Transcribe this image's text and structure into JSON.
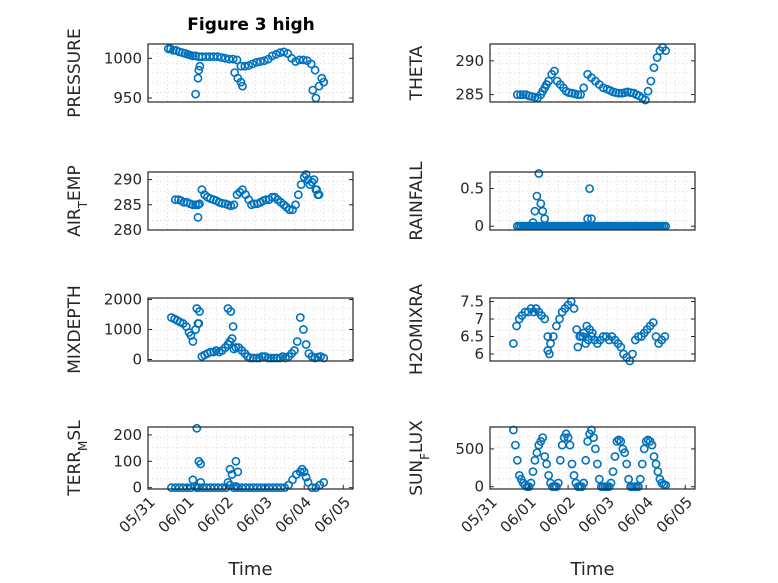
{
  "figure_title": "Figure 3 high",
  "chart_data": [
    {
      "type": "scatter",
      "ylabel": "PRESSURE",
      "xlabel": "",
      "title": "Figure 3 high",
      "xlim": [
        0,
        5.25
      ],
      "ylim": [
        945,
        1018
      ],
      "yticks": [
        950,
        1000
      ],
      "xticks": [],
      "xtick_labels": [],
      "grid": true,
      "color": "#0072BD",
      "x": [
        0.52,
        0.58,
        0.65,
        0.72,
        0.8,
        0.88,
        0.95,
        1.02,
        1.08,
        1.15,
        1.22,
        1.3,
        1.38,
        1.48,
        1.58,
        1.68,
        1.78,
        1.88,
        1.98,
        2.08,
        2.18,
        2.28,
        2.38,
        2.48,
        2.58,
        2.68,
        2.78,
        2.88,
        2.98,
        3.08,
        3.18,
        3.28,
        3.38,
        3.48,
        3.58,
        3.68,
        3.78,
        3.88,
        3.98,
        4.08,
        4.18,
        4.28,
        1.22,
        1.28,
        1.3,
        1.33,
        2.22,
        2.3,
        2.38,
        2.42,
        4.22,
        4.3,
        4.38,
        4.45,
        4.5
      ],
      "y": [
        1012,
        1012,
        1010,
        1010,
        1008,
        1007,
        1006,
        1005,
        1004,
        1003,
        1003,
        1002,
        1002,
        1002,
        1002,
        1002,
        1002,
        1001,
        1000,
        999,
        999,
        998,
        990,
        990,
        991,
        993,
        995,
        996,
        997,
        999,
        1003,
        1005,
        1007,
        1008,
        1006,
        1000,
        996,
        998,
        998,
        997,
        993,
        985,
        955,
        975,
        985,
        990,
        982,
        975,
        970,
        965,
        960,
        950,
        965,
        975,
        970
      ]
    },
    {
      "type": "scatter",
      "ylabel": "THETA",
      "xlabel": "",
      "title": "",
      "xlim": [
        0,
        5.25
      ],
      "ylim": [
        283.9,
        292.5
      ],
      "yticks": [
        285,
        290
      ],
      "xticks": [],
      "xtick_labels": [],
      "grid": true,
      "color": "#0072BD",
      "x": [
        0.7,
        0.78,
        0.85,
        0.92,
        1.0,
        1.08,
        1.15,
        1.22,
        1.3,
        1.35,
        1.4,
        1.45,
        1.5,
        1.58,
        1.65,
        1.72,
        1.8,
        1.88,
        1.95,
        2.02,
        2.1,
        2.18,
        2.25,
        2.32,
        2.4,
        2.5,
        2.6,
        2.7,
        2.8,
        2.9,
        3.0,
        3.08,
        3.15,
        3.22,
        3.3,
        3.38,
        3.45,
        3.52,
        3.6,
        3.68,
        3.75,
        3.82,
        3.9,
        3.98,
        4.05,
        4.12,
        4.2,
        4.28,
        4.35,
        4.42,
        4.5
      ],
      "y": [
        285,
        285,
        285,
        285,
        284.8,
        284.7,
        284.6,
        284.5,
        285,
        285.5,
        286,
        286.5,
        287,
        288,
        288.5,
        287,
        286.5,
        286,
        285.5,
        285.3,
        285.2,
        285.1,
        285,
        285,
        286,
        288,
        287.5,
        287,
        286.5,
        286,
        285.8,
        285.6,
        285.4,
        285.3,
        285.2,
        285.2,
        285.3,
        285.4,
        285.3,
        285.2,
        285,
        284.8,
        284.5,
        284.2,
        285.5,
        287,
        289,
        290.5,
        291.5,
        292,
        291.5
      ]
    },
    {
      "type": "scatter",
      "ylabel": "AIR_TEMP",
      "xlabel": "",
      "title": "",
      "xlim": [
        0,
        5.25
      ],
      "ylim": [
        280,
        291.5
      ],
      "yticks": [
        280,
        285,
        290
      ],
      "xticks": [],
      "xtick_labels": [],
      "grid": true,
      "color": "#0072BD",
      "x": [
        0.7,
        0.78,
        0.85,
        0.92,
        1.0,
        1.08,
        1.15,
        1.22,
        1.28,
        1.32,
        1.38,
        1.45,
        1.52,
        1.6,
        1.68,
        1.75,
        1.82,
        1.9,
        1.98,
        2.05,
        2.12,
        2.2,
        2.28,
        2.35,
        2.42,
        2.5,
        2.58,
        2.65,
        2.72,
        2.8,
        2.88,
        2.95,
        3.02,
        3.1,
        3.18,
        3.25,
        3.32,
        3.4,
        3.48,
        3.55,
        3.62,
        3.7,
        3.78,
        3.85,
        3.92,
        4.0,
        4.05,
        4.1,
        4.15,
        4.2,
        4.25,
        4.3,
        4.35,
        1.28,
        4.32,
        4.38
      ],
      "y": [
        286,
        286,
        285.8,
        285.5,
        285.5,
        285.2,
        285,
        285,
        285,
        285.2,
        288,
        287,
        286.5,
        286.2,
        286,
        285.8,
        285.5,
        285.3,
        285.2,
        285,
        284.8,
        285,
        287,
        287.5,
        288,
        287,
        286,
        285,
        285.2,
        285.2,
        285.5,
        285.8,
        286,
        286,
        286.5,
        286.5,
        286,
        285.5,
        285,
        284.5,
        284,
        284,
        285,
        287,
        289,
        290.5,
        291,
        290,
        289,
        289.5,
        290,
        288,
        287,
        282.5,
        288,
        287
      ]
    },
    {
      "type": "scatter",
      "ylabel": "RAINFALL",
      "xlabel": "",
      "title": "",
      "xlim": [
        0,
        5.25
      ],
      "ylim": [
        -0.05,
        0.72
      ],
      "yticks": [
        0,
        0.5
      ],
      "xticks": [],
      "xtick_labels": [],
      "grid": true,
      "color": "#0072BD",
      "x": [
        0.7,
        0.75,
        0.8,
        0.85,
        0.9,
        0.95,
        1.0,
        1.05,
        1.1,
        1.15,
        1.2,
        1.25,
        1.3,
        1.35,
        1.4,
        1.45,
        1.5,
        1.55,
        1.6,
        1.65,
        1.7,
        1.75,
        1.8,
        1.85,
        1.9,
        1.95,
        2.0,
        2.05,
        2.1,
        2.15,
        2.2,
        2.25,
        2.3,
        2.35,
        2.4,
        2.45,
        2.5,
        2.55,
        2.6,
        2.65,
        2.7,
        2.75,
        2.8,
        2.85,
        2.9,
        2.95,
        3.0,
        3.05,
        3.1,
        3.15,
        3.2,
        3.25,
        3.3,
        3.35,
        3.4,
        3.45,
        3.5,
        3.55,
        3.6,
        3.65,
        3.7,
        3.75,
        3.8,
        3.85,
        3.9,
        3.95,
        4.0,
        4.05,
        4.1,
        4.15,
        4.2,
        4.25,
        4.3,
        4.35,
        4.4,
        4.45,
        4.5,
        1.1,
        1.15,
        1.2,
        1.25,
        1.3,
        1.35,
        1.4,
        2.5,
        2.55,
        2.6
      ],
      "y": [
        0,
        0,
        0,
        0,
        0,
        0,
        0,
        0,
        0,
        0,
        0,
        0,
        0,
        0,
        0,
        0,
        0,
        0,
        0,
        0,
        0,
        0,
        0,
        0,
        0,
        0,
        0,
        0,
        0,
        0,
        0,
        0,
        0,
        0,
        0,
        0,
        0,
        0,
        0,
        0,
        0,
        0,
        0,
        0,
        0,
        0,
        0,
        0,
        0,
        0,
        0,
        0,
        0,
        0,
        0,
        0,
        0,
        0,
        0,
        0,
        0,
        0,
        0,
        0,
        0,
        0,
        0,
        0,
        0,
        0,
        0,
        0,
        0,
        0,
        0,
        0,
        0,
        0.05,
        0.2,
        0.4,
        0.7,
        0.3,
        0.2,
        0.1,
        0.1,
        0.5,
        0.1
      ]
    },
    {
      "type": "scatter",
      "ylabel": "MIXDEPTH",
      "xlabel": "",
      "title": "",
      "xlim": [
        0,
        5.25
      ],
      "ylim": [
        -50,
        2050
      ],
      "yticks": [
        0,
        1000,
        2000
      ],
      "xticks": [],
      "xtick_labels": [],
      "grid": true,
      "color": "#0072BD",
      "x": [
        0.6,
        0.68,
        0.75,
        0.82,
        0.9,
        0.98,
        1.05,
        1.1,
        1.15,
        1.22,
        1.28,
        1.32,
        1.38,
        1.45,
        1.52,
        1.6,
        1.68,
        1.75,
        1.82,
        1.9,
        1.98,
        2.05,
        2.1,
        2.15,
        2.2,
        2.25,
        2.32,
        2.4,
        2.48,
        2.55,
        2.62,
        2.7,
        2.78,
        2.85,
        2.92,
        3.0,
        3.08,
        3.15,
        3.22,
        3.3,
        3.38,
        3.45,
        3.52,
        3.6,
        3.68,
        3.75,
        3.82,
        3.9,
        3.98,
        4.05,
        4.12,
        4.2,
        4.28,
        4.35,
        4.42,
        4.5,
        1.25,
        1.3,
        2.05,
        2.12,
        2.18
      ],
      "y": [
        1400,
        1350,
        1300,
        1250,
        1200,
        1100,
        900,
        800,
        600,
        1000,
        1200,
        1600,
        100,
        150,
        200,
        250,
        250,
        300,
        250,
        300,
        400,
        500,
        600,
        700,
        350,
        400,
        400,
        300,
        200,
        100,
        50,
        50,
        50,
        50,
        100,
        100,
        50,
        50,
        50,
        50,
        50,
        100,
        50,
        100,
        200,
        300,
        600,
        1400,
        1000,
        500,
        200,
        100,
        50,
        80,
        100,
        50,
        1700,
        1200,
        1700,
        1600,
        1100
      ]
    },
    {
      "type": "scatter",
      "ylabel": "H2OMIXRA",
      "xlabel": "",
      "title": "",
      "xlim": [
        0,
        5.25
      ],
      "ylim": [
        5.8,
        7.6
      ],
      "yticks": [
        6,
        6.5,
        7,
        7.5
      ],
      "xticks": [],
      "xtick_labels": [],
      "grid": true,
      "color": "#0072BD",
      "x": [
        0.6,
        0.68,
        0.75,
        0.82,
        0.9,
        0.98,
        1.05,
        1.12,
        1.18,
        1.25,
        1.32,
        1.4,
        1.48,
        1.55,
        1.62,
        1.7,
        1.78,
        1.85,
        1.92,
        2.0,
        2.08,
        2.15,
        2.22,
        2.3,
        2.38,
        2.45,
        2.52,
        2.6,
        2.68,
        2.75,
        2.82,
        2.9,
        2.98,
        3.05,
        3.12,
        3.2,
        3.28,
        3.35,
        3.42,
        3.5,
        3.58,
        3.65,
        3.72,
        3.8,
        3.88,
        3.95,
        4.02,
        4.1,
        4.18,
        4.25,
        4.32,
        4.4,
        4.48,
        1.48,
        1.52,
        2.25,
        2.32,
        2.4,
        2.48,
        2.55,
        2.62
      ],
      "y": [
        6.3,
        6.8,
        7,
        7.1,
        7.2,
        7.2,
        7.3,
        7.2,
        7.3,
        7.2,
        7.1,
        7,
        6.5,
        6.3,
        6.5,
        6.8,
        7,
        7.2,
        7.3,
        7.4,
        7.5,
        7.3,
        6.7,
        6.5,
        6.5,
        6.3,
        6.4,
        6.5,
        6.4,
        6.3,
        6.4,
        6.5,
        6.5,
        6.4,
        6.5,
        6.4,
        6.3,
        6.2,
        6,
        5.9,
        5.8,
        6,
        6.4,
        6.5,
        6.5,
        6.6,
        6.7,
        6.8,
        6.9,
        6.5,
        6.3,
        6.4,
        6.5,
        6.1,
        6,
        6.2,
        6.5,
        6.6,
        6.8,
        6.7,
        6.6
      ]
    },
    {
      "type": "scatter",
      "ylabel": "TERR_MSL",
      "xlabel": "Time",
      "title": "",
      "xlim": [
        0,
        5.25
      ],
      "ylim": [
        -5,
        230
      ],
      "yticks": [
        0,
        100,
        200
      ],
      "xticks": [
        0,
        1,
        2,
        3,
        4,
        5
      ],
      "xtick_labels": [
        "05/31",
        "06/01",
        "06/02",
        "06/03",
        "06/04",
        "06/05"
      ],
      "grid": true,
      "color": "#0072BD",
      "x": [
        0.6,
        0.7,
        0.8,
        0.9,
        1.0,
        1.1,
        1.15,
        1.2,
        1.25,
        1.3,
        1.35,
        1.4,
        1.5,
        1.6,
        1.7,
        1.8,
        1.9,
        2.0,
        2.05,
        2.1,
        2.15,
        2.2,
        2.25,
        2.3,
        2.4,
        2.5,
        2.6,
        2.7,
        2.8,
        2.9,
        3.0,
        3.1,
        3.2,
        3.3,
        3.4,
        3.5,
        3.6,
        3.7,
        3.8,
        3.9,
        3.95,
        4.0,
        4.05,
        4.1,
        4.2,
        4.3,
        4.4,
        4.5,
        1.25,
        1.3,
        1.35,
        2.1,
        2.25,
        2.3
      ],
      "y": [
        0,
        0,
        0,
        0,
        0,
        0,
        30,
        5,
        0,
        0,
        20,
        0,
        0,
        0,
        0,
        0,
        0,
        0,
        20,
        10,
        50,
        0,
        5,
        0,
        0,
        0,
        0,
        0,
        0,
        0,
        0,
        0,
        0,
        0,
        0,
        0,
        10,
        30,
        50,
        60,
        70,
        60,
        40,
        20,
        0,
        0,
        10,
        20,
        225,
        100,
        90,
        70,
        100,
        60
      ]
    },
    {
      "type": "scatter",
      "ylabel": "SUN_FLUX",
      "xlabel": "Time",
      "title": "",
      "xlim": [
        0,
        5.25
      ],
      "ylim": [
        -30,
        790
      ],
      "yticks": [
        0,
        500
      ],
      "xticks": [
        0,
        1,
        2,
        3,
        4,
        5
      ],
      "xtick_labels": [
        "05/31",
        "06/01",
        "06/02",
        "06/03",
        "06/04",
        "06/05"
      ],
      "grid": true,
      "color": "#0072BD",
      "x": [
        0.6,
        0.65,
        0.7,
        0.75,
        0.8,
        0.85,
        0.9,
        0.95,
        1.0,
        1.05,
        1.1,
        1.15,
        1.2,
        1.25,
        1.3,
        1.35,
        1.4,
        1.45,
        1.5,
        1.55,
        1.6,
        1.65,
        1.7,
        1.75,
        1.8,
        1.85,
        1.9,
        1.95,
        2.0,
        2.05,
        2.1,
        2.15,
        2.2,
        2.25,
        2.3,
        2.35,
        2.4,
        2.45,
        2.5,
        2.55,
        2.6,
        2.65,
        2.7,
        2.75,
        2.8,
        2.85,
        2.9,
        2.95,
        3.0,
        3.05,
        3.1,
        3.15,
        3.2,
        3.25,
        3.3,
        3.35,
        3.4,
        3.45,
        3.5,
        3.55,
        3.6,
        3.65,
        3.7,
        3.75,
        3.8,
        3.85,
        3.9,
        3.95,
        4.0,
        4.05,
        4.1,
        4.15,
        4.2,
        4.25,
        4.3,
        4.35,
        4.4,
        4.45,
        4.5
      ],
      "y": [
        750,
        550,
        350,
        150,
        100,
        50,
        20,
        0,
        0,
        50,
        200,
        350,
        450,
        550,
        600,
        650,
        400,
        300,
        150,
        50,
        0,
        0,
        0,
        50,
        350,
        550,
        650,
        700,
        650,
        550,
        300,
        150,
        50,
        0,
        0,
        0,
        50,
        350,
        600,
        700,
        750,
        650,
        500,
        300,
        100,
        0,
        0,
        0,
        0,
        0,
        50,
        200,
        400,
        600,
        620,
        600,
        500,
        450,
        300,
        100,
        0,
        0,
        0,
        0,
        0,
        100,
        300,
        500,
        600,
        620,
        600,
        550,
        400,
        300,
        200,
        100,
        50,
        30,
        20
      ]
    }
  ]
}
